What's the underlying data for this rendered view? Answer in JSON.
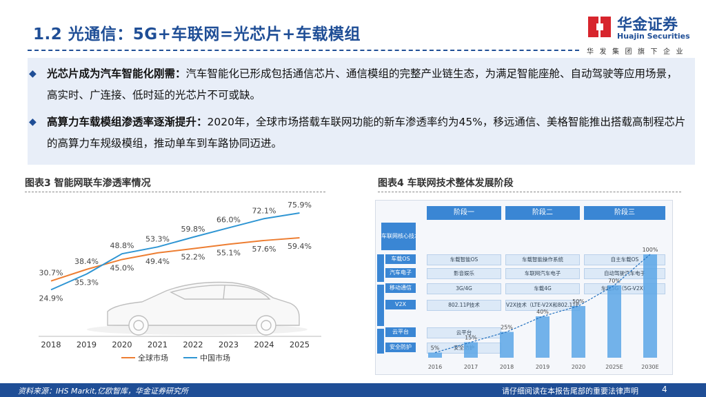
{
  "header": {
    "title": "1.2 光通信：5G+车联网=光芯片+车载模组",
    "logo_cn": "华金证券",
    "logo_en": "Huajin Securities",
    "logo_tagline": "华发集团旗下企业"
  },
  "bullets": [
    {
      "lead": "光芯片成为汽车智能化刚需：",
      "body": "汽车智能化已形成包括通信芯片、通信模组的完整产业链生态，为满足智能座舱、自动驾驶等应用场景，高实时、广连接、低时延的光芯片不可或缺。"
    },
    {
      "lead": "高算力车载模组渗透率逐渐提升：",
      "body": "2020年，全球市场搭载车联网功能的新车渗透率约为45%，移远通信、美格智能推出搭载高制程芯片的高算力车规级模组，推动单车到车路协同迈进。"
    }
  ],
  "chart_data": {
    "type": "line",
    "title": "图表3 智能网联车渗透率情况",
    "x": [
      "2018",
      "2019",
      "2020",
      "2021",
      "2022",
      "2023",
      "2024",
      "2025"
    ],
    "ylim": [
      15,
      80
    ],
    "series": [
      {
        "name": "全球市场",
        "color": "#ed7d31",
        "values": [
          30.7,
          38.4,
          45.0,
          49.4,
          52.2,
          55.1,
          57.6,
          59.4
        ],
        "labels": [
          "30.7%",
          "38.4%",
          "45.0%",
          "49.4%",
          "52.2%",
          "55.1%",
          "57.6%",
          "59.4%"
        ]
      },
      {
        "name": "中国市场",
        "color": "#2e95d3",
        "values": [
          24.9,
          35.3,
          48.8,
          53.3,
          59.8,
          66.0,
          72.1,
          75.9
        ],
        "labels": [
          "24.9%",
          "35.3%",
          "48.8%",
          "53.3%",
          "59.8%",
          "66.0%",
          "72.1%",
          "75.9%"
        ]
      }
    ]
  },
  "figure4": {
    "title": "图表4 车联网技术整体发展阶段",
    "stages": [
      "阶段一",
      "阶段二",
      "阶段三"
    ],
    "side_header": "车联网核心技术",
    "row_labels": [
      "车载OS",
      "汽车电子",
      "移动通信",
      "V2X",
      "云平台",
      "安全防护"
    ],
    "years": [
      "2016",
      "2017",
      "2018",
      "2019",
      "2020",
      "2025E",
      "2030E"
    ],
    "bars": [
      {
        "year": "2016",
        "value": 5,
        "label": "5%"
      },
      {
        "year": "2017",
        "value": 15,
        "label": "15%"
      },
      {
        "year": "2018",
        "value": 25,
        "label": "25%"
      },
      {
        "year": "2019",
        "value": 40,
        "label": "40%"
      },
      {
        "year": "2020",
        "value": 50,
        "label": "50%"
      },
      {
        "year": "2025E",
        "value": 70,
        "label": "70%"
      },
      {
        "year": "2030E",
        "value": 100,
        "label": "100%"
      }
    ],
    "cells": [
      {
        "row": 0,
        "text": "车载智能OS",
        "c0": 0,
        "c1": 1
      },
      {
        "row": 0,
        "text": "车载智能操作系统",
        "c0": 1,
        "c1": 2
      },
      {
        "row": 0,
        "text": "自主车载OS",
        "c0": 2,
        "c1": 3
      },
      {
        "row": 1,
        "text": "影音娱乐",
        "c0": 0,
        "c1": 1
      },
      {
        "row": 1,
        "text": "车联网汽车电子",
        "c0": 1,
        "c1": 2
      },
      {
        "row": 1,
        "text": "自动驾驶汽车电子",
        "c0": 2,
        "c1": 3
      },
      {
        "row": 2,
        "text": "3G/4G",
        "c0": 0,
        "c1": 1
      },
      {
        "row": 2,
        "text": "车载4G",
        "c0": 1,
        "c1": 2
      },
      {
        "row": 2,
        "text": "车载5G（5G-V2X）",
        "c0": 2,
        "c1": 3
      },
      {
        "row": 3,
        "text": "802.11P技术",
        "c0": 0,
        "c1": 1
      },
      {
        "row": 3,
        "text": "V2X技术（LTE-V2X和802.11P）",
        "c0": 1,
        "c1": 2
      },
      {
        "row": 4,
        "text": "云平台",
        "c0": 0,
        "c1": 1
      },
      {
        "row": 5,
        "text": "安全防护",
        "c0": 0,
        "c1": 1
      }
    ]
  },
  "footer": {
    "source": "资料来源：IHS Markit,亿欧智库，华金证券研究所",
    "disclaimer": "请仔细阅读在本报告尾部的重要法律声明",
    "page": "4"
  }
}
